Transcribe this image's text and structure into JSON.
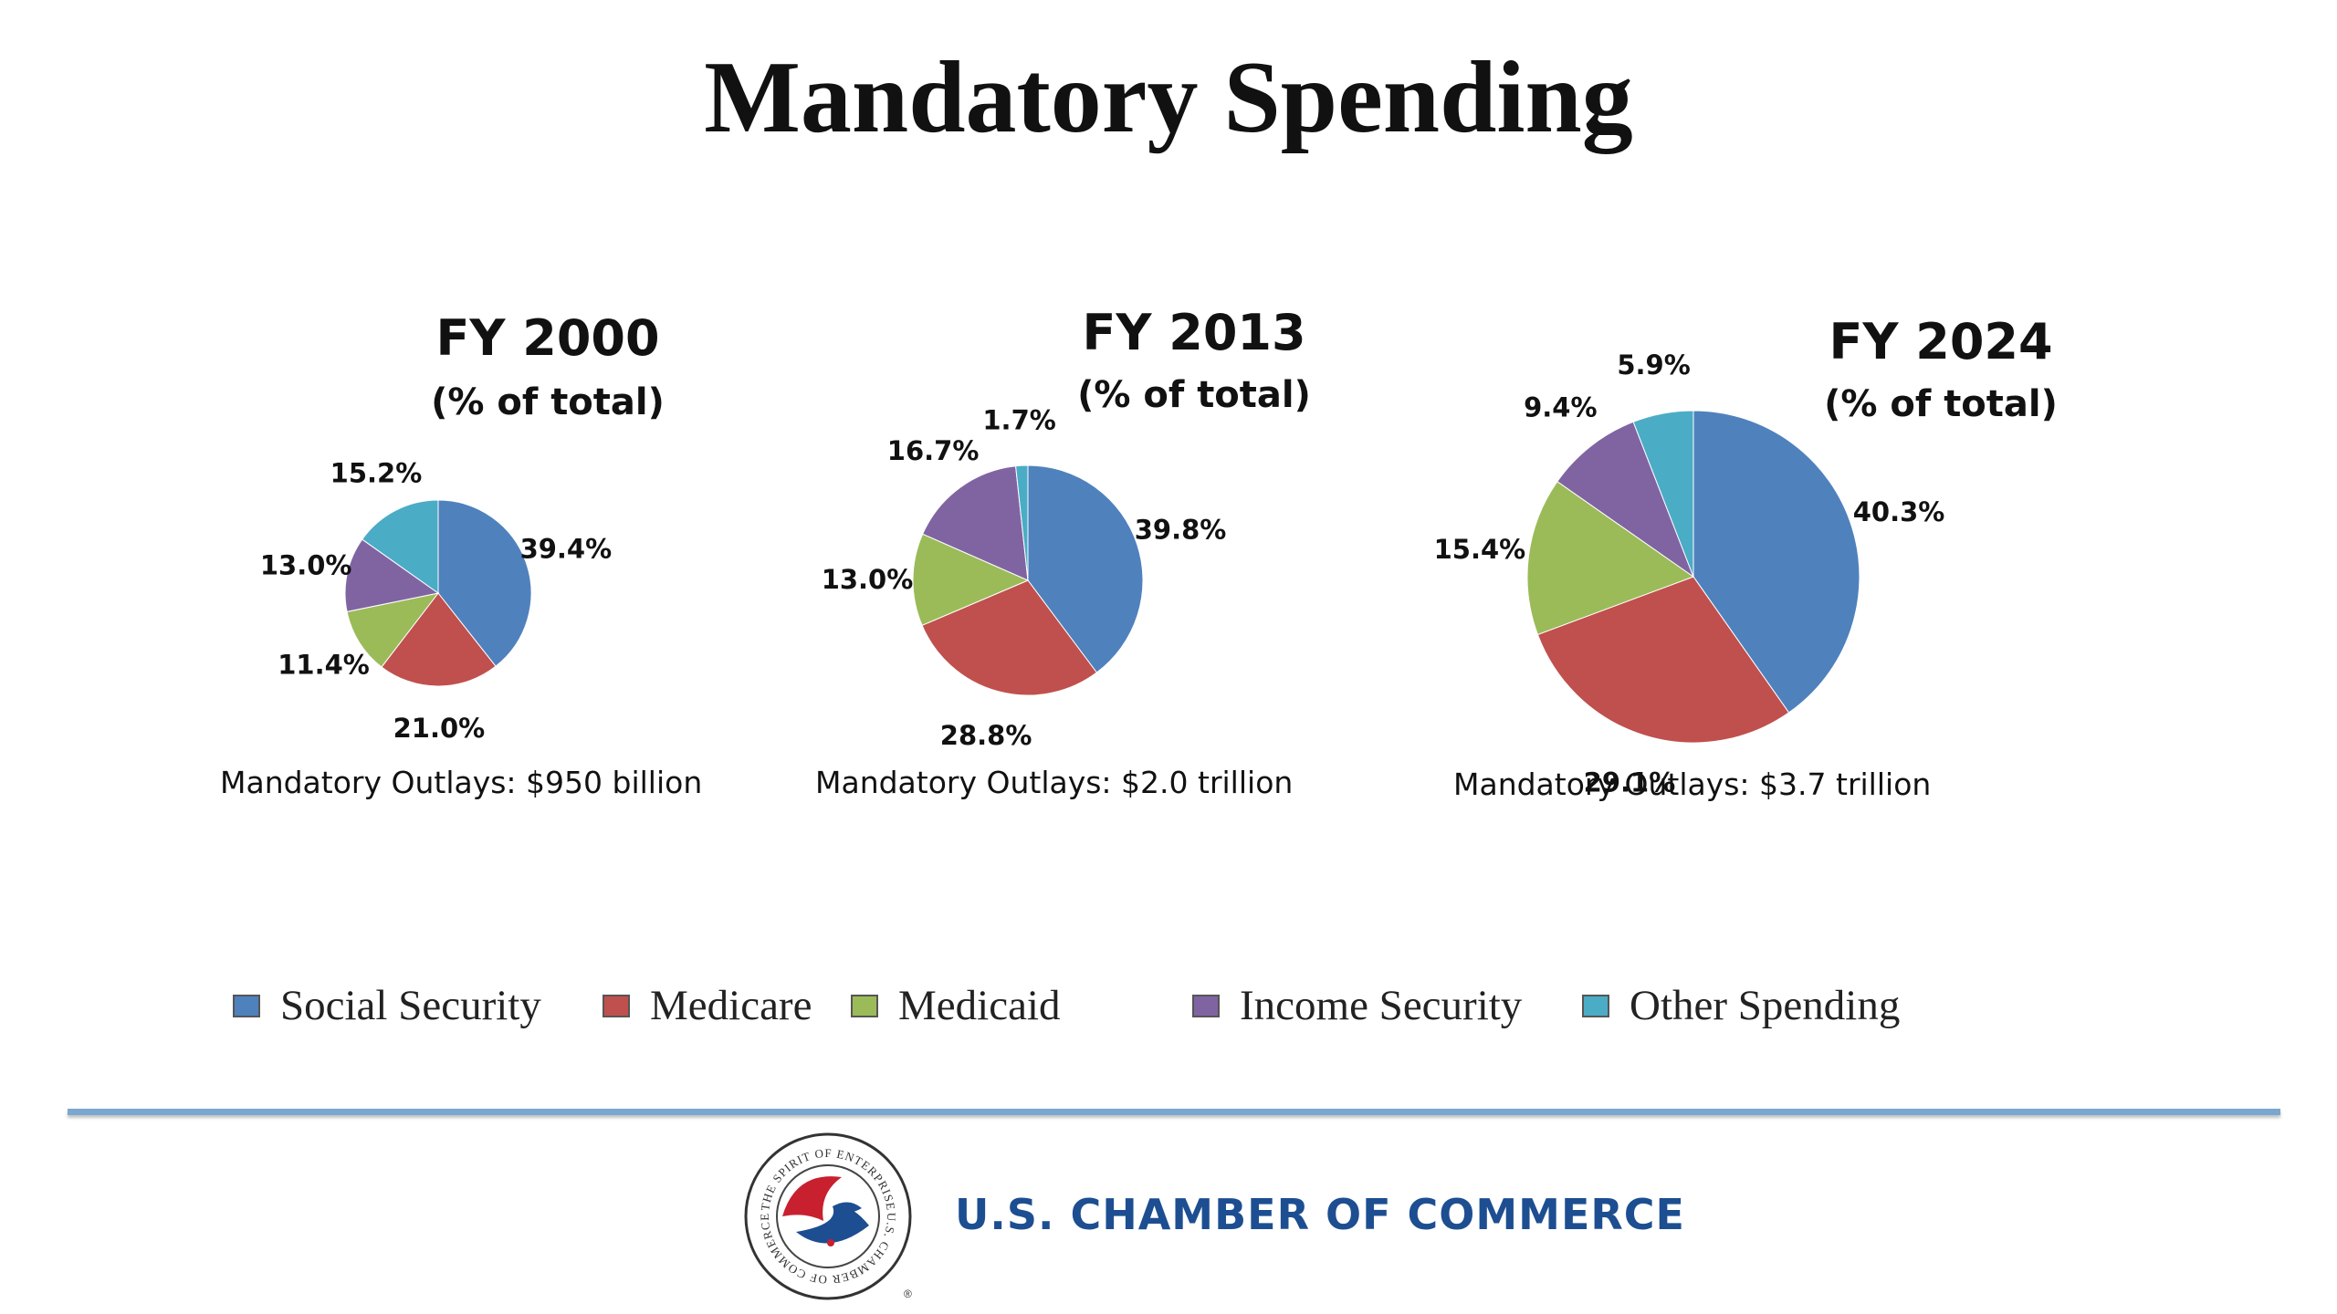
{
  "title": "Mandatory Spending",
  "colors": {
    "social_security": "#4f81bd",
    "medicare": "#c0504d",
    "medicaid": "#9bbb59",
    "income_security": "#8064a2",
    "other_spending": "#4bacc6"
  },
  "legend": [
    {
      "label": "Social Security",
      "color": "#4f81bd"
    },
    {
      "label": "Medicare",
      "color": "#c0504d"
    },
    {
      "label": "Medicaid",
      "color": "#9bbb59"
    },
    {
      "label": "Income Security",
      "color": "#8064a2"
    },
    {
      "label": "Other Spending",
      "color": "#4bacc6"
    }
  ],
  "chart_data": [
    {
      "type": "pie",
      "title": "FY 2000",
      "subtitle": "(% of total)",
      "categories": [
        "Social Security",
        "Medicare",
        "Medicaid",
        "Income Security",
        "Other Spending"
      ],
      "values": [
        39.4,
        21.0,
        11.4,
        13.0,
        15.2
      ],
      "labels": [
        "39.4%",
        "21.0%",
        "11.4%",
        "13.0%",
        "15.2%"
      ],
      "note": "Mandatory Outlays: $950 billion"
    },
    {
      "type": "pie",
      "title": "FY 2013",
      "subtitle": "(% of total)",
      "categories": [
        "Social Security",
        "Medicare",
        "Medicaid",
        "Income Security",
        "Other Spending"
      ],
      "values": [
        39.8,
        28.8,
        13.0,
        16.7,
        1.7
      ],
      "labels": [
        "39.8%",
        "28.8%",
        "13.0%",
        "16.7%",
        "1.7%"
      ],
      "note": "Mandatory Outlays: $2.0 trillion"
    },
    {
      "type": "pie",
      "title": "FY 2024",
      "subtitle": "(% of total)",
      "categories": [
        "Social Security",
        "Medicare",
        "Medicaid",
        "Income Security",
        "Other Spending"
      ],
      "values": [
        40.3,
        29.1,
        15.4,
        9.4,
        5.9
      ],
      "labels": [
        "40.3%",
        "29.1%",
        "15.4%",
        "9.4%",
        "5.9%"
      ],
      "note": "Mandatory Outlays: $3.7 trillion"
    }
  ],
  "footer": {
    "organization": "U.S. CHAMBER OF COMMERCE",
    "seal_text": "THE SPIRIT OF ENTERPRISE · U.S. CHAMBER OF COMMERCE"
  }
}
